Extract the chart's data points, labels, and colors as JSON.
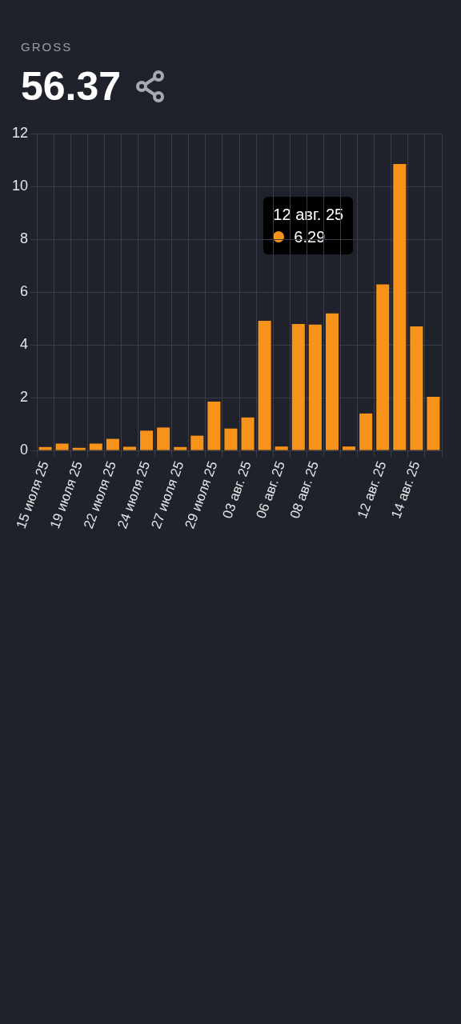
{
  "chart_data": {
    "type": "bar",
    "title": "GROSS",
    "subtitle": "56.37",
    "categories": [
      "15 июля 25",
      null,
      "19 июля 25",
      null,
      "22 июля 25",
      null,
      "24 июля 25",
      null,
      "27 июля 25",
      null,
      "29 июля 25",
      null,
      "03 авг. 25",
      null,
      "06 авг. 25",
      null,
      "08 авг. 25",
      null,
      null,
      null,
      "12 авг. 25",
      null,
      "14 авг. 25",
      null
    ],
    "values": [
      0.13,
      0.26,
      0.1,
      0.26,
      0.44,
      0.14,
      0.75,
      0.87,
      0.13,
      0.56,
      1.85,
      0.83,
      1.25,
      4.91,
      0.15,
      4.79,
      4.77,
      5.19,
      0.15,
      1.4,
      6.29,
      10.85,
      4.7,
      2.03
    ],
    "color": "#f7931a",
    "ylim": [
      0,
      12
    ],
    "yticks": [
      0,
      2,
      4,
      6,
      8,
      10,
      12
    ],
    "grid": true,
    "legend": false,
    "annotations": [
      "12 авг. 25",
      "6.29"
    ]
  }
}
